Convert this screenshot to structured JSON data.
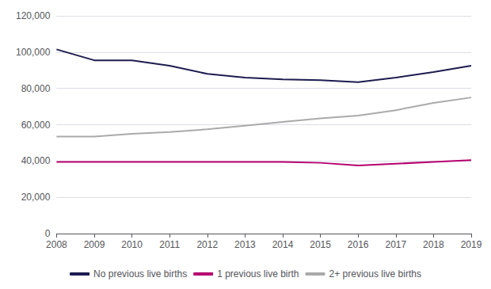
{
  "chart_data": {
    "type": "line",
    "categories": [
      "2008",
      "2009",
      "2010",
      "2011",
      "2012",
      "2013",
      "2014",
      "2015",
      "2016",
      "2017",
      "2018",
      "2019"
    ],
    "series": [
      {
        "name": "No previous live births",
        "color": "#1c1c4f",
        "values": [
          101500,
          95500,
          95500,
          92500,
          88000,
          86000,
          85000,
          84500,
          83500,
          86000,
          89000,
          92500
        ]
      },
      {
        "name": "1 previous live birth",
        "color": "#b5006e",
        "values": [
          39500,
          39500,
          39500,
          39500,
          39500,
          39500,
          39500,
          39000,
          37500,
          38500,
          39500,
          40500
        ]
      },
      {
        "name": "2+ previous live births",
        "color": "#aaaaaa",
        "values": [
          53500,
          53500,
          55000,
          56000,
          57500,
          59500,
          61500,
          63500,
          65000,
          68000,
          72000,
          75000
        ]
      }
    ],
    "ylim": [
      0,
      120000
    ],
    "yticks": [
      0,
      {
        "value": 20000,
        "label": "20,000"
      },
      {
        "value": 40000,
        "label": "40,000"
      },
      {
        "value": 60000,
        "label": "60,000"
      },
      {
        "value": 80000,
        "label": "80,000"
      },
      {
        "value": 100000,
        "label": "100,000"
      },
      {
        "value": 120000,
        "label": "120,000"
      }
    ],
    "grid": true,
    "legend": "bottom"
  }
}
